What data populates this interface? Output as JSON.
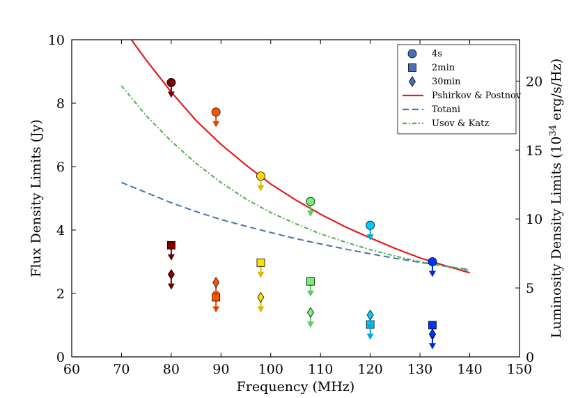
{
  "chart_data": {
    "type": "scatter",
    "xlabel": "Frequency (MHz)",
    "ylabel": "Flux Density Limits (Jy)",
    "y2label_prefix": "Luminosity Density Limits (10",
    "y2label_exponent": "34",
    "y2label_suffix": " erg/s/Hz)",
    "xlim": [
      60,
      150
    ],
    "ylim": [
      0,
      10
    ],
    "y2lim": [
      0,
      23
    ],
    "xticks": [
      60,
      70,
      80,
      90,
      100,
      110,
      120,
      130,
      140,
      150
    ],
    "yticks": [
      0,
      2,
      4,
      6,
      8,
      10
    ],
    "y2ticks": [
      0,
      5,
      10,
      15,
      20
    ],
    "legend_position": "top-right",
    "legend": [
      {
        "label": "4s",
        "kind": "marker",
        "marker": "circle",
        "color": "#4a6fb5"
      },
      {
        "label": "2min",
        "kind": "marker",
        "marker": "square",
        "color": "#4a6fb5"
      },
      {
        "label": "30min",
        "kind": "marker",
        "marker": "diamond",
        "color": "#4a6fb5"
      },
      {
        "label": "Pshirkov & Postnov",
        "kind": "line",
        "dash": "solid",
        "color": "#e41a1c"
      },
      {
        "label": "Totani",
        "kind": "line",
        "dash": "dashed",
        "color": "#4a72b0"
      },
      {
        "label": "Usov & Katz",
        "kind": "line",
        "dash": "dashdot",
        "color": "#4daf4a"
      }
    ],
    "channel_colors": [
      "#7a0000",
      "#ff5500",
      "#ffdd00",
      "#77ee77",
      "#00ccff",
      "#0033ff"
    ],
    "series": [
      {
        "name": "4s",
        "marker": "circle",
        "x": [
          80,
          89,
          98,
          108,
          120,
          132.5
        ],
        "y": [
          8.65,
          7.72,
          5.7,
          4.9,
          4.15,
          3.0
        ]
      },
      {
        "name": "2min",
        "marker": "square",
        "x": [
          80,
          89,
          98,
          108,
          120,
          132.5
        ],
        "y": [
          3.52,
          1.88,
          2.97,
          2.38,
          1.02,
          1.0
        ]
      },
      {
        "name": "30min",
        "marker": "diamond",
        "x": [
          80,
          89,
          98,
          108,
          120,
          132.5
        ],
        "y": [
          2.6,
          2.35,
          1.88,
          1.4,
          1.32,
          0.72
        ]
      }
    ],
    "curves": [
      {
        "name": "Pshirkov & Postnov",
        "dash": "solid",
        "color": "#e41a1c",
        "x": [
          72,
          75,
          80,
          85,
          90,
          95,
          100,
          105,
          110,
          115,
          120,
          125,
          130,
          135,
          140
        ],
        "y": [
          10.0,
          9.35,
          8.35,
          7.45,
          6.7,
          6.05,
          5.45,
          4.95,
          4.5,
          4.1,
          3.75,
          3.42,
          3.12,
          2.88,
          2.65
        ]
      },
      {
        "name": "Totani",
        "dash": "dashed",
        "color": "#4a72b0",
        "x": [
          70,
          75,
          80,
          85,
          90,
          95,
          100,
          105,
          110,
          115,
          120,
          125,
          130,
          135,
          140
        ],
        "y": [
          5.5,
          5.18,
          4.86,
          4.58,
          4.33,
          4.12,
          3.92,
          3.73,
          3.56,
          3.4,
          3.25,
          3.11,
          2.98,
          2.86,
          2.75
        ]
      },
      {
        "name": "Usov & Katz",
        "dash": "dashdot",
        "color": "#4daf4a",
        "x": [
          70,
          75,
          80,
          85,
          90,
          95,
          100,
          105,
          110,
          115,
          120,
          125,
          130,
          135,
          140
        ],
        "y": [
          8.55,
          7.6,
          6.8,
          6.1,
          5.5,
          4.98,
          4.55,
          4.2,
          3.88,
          3.62,
          3.38,
          3.18,
          3.0,
          2.86,
          2.72
        ]
      }
    ]
  }
}
